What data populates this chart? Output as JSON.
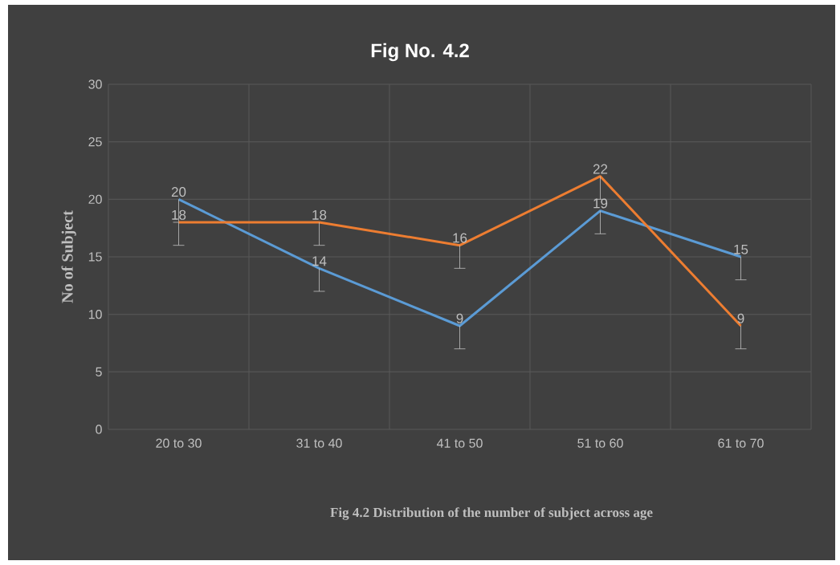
{
  "chart_data": {
    "type": "line",
    "title": "Fig No. 4.2",
    "ylabel": "No of Subject",
    "annotations": [
      "Fig 4.2 Distribution  of the number  of subject across age"
    ],
    "categories": [
      "20 to 30",
      "31 to 40",
      "41 to 50",
      "51 to 60",
      "61 to 70"
    ],
    "series": [
      {
        "color": "#5b9bd5",
        "values": [
          20,
          14,
          9,
          19,
          15
        ],
        "errors": [
          [
            18,
            20
          ],
          [
            12,
            14
          ],
          [
            7,
            9
          ],
          [
            17,
            19
          ],
          [
            13,
            15
          ]
        ]
      },
      {
        "color": "#ed7d31",
        "values": [
          18,
          18,
          16,
          22,
          9
        ],
        "errors": [
          [
            16,
            18
          ],
          [
            16,
            18
          ],
          [
            14,
            16
          ],
          [
            20,
            22
          ],
          [
            7,
            9
          ]
        ]
      }
    ],
    "ylim": [
      0,
      30
    ],
    "yticks": [
      0,
      5,
      10,
      15,
      20,
      25,
      30
    ],
    "grid": true,
    "marker": "none",
    "line_style": "solid",
    "data_labels": true
  }
}
